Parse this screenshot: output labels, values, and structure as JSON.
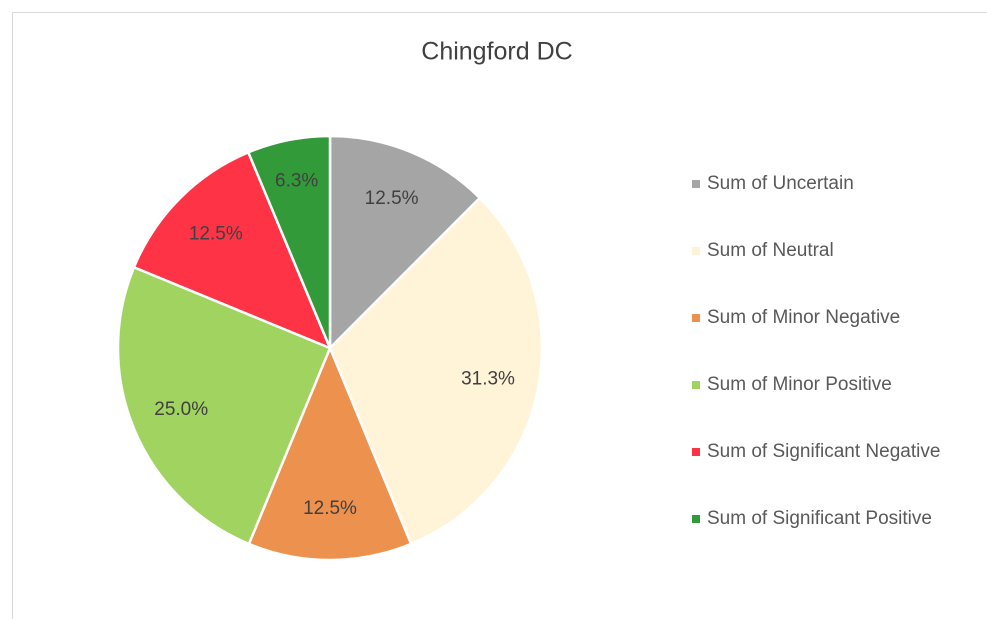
{
  "chart_data": {
    "type": "pie",
    "title": "Chingford DC",
    "categories": [
      "Sum of Uncertain",
      "Sum of Neutral",
      "Sum of Minor Negative",
      "Sum of Minor Positive",
      "Sum of Significant Negative",
      "Sum of Significant Positive"
    ],
    "values": [
      12.5,
      31.3,
      12.5,
      25.0,
      12.5,
      6.3
    ],
    "value_labels": [
      "12.5%",
      "31.3%",
      "12.5%",
      "25.0%",
      "12.5%",
      "6.3%"
    ],
    "colors": [
      "#a5a5a5",
      "#fff3d8",
      "#ed914f",
      "#a0d35f",
      "#ff3346",
      "#339a3a"
    ],
    "legend": "right"
  }
}
